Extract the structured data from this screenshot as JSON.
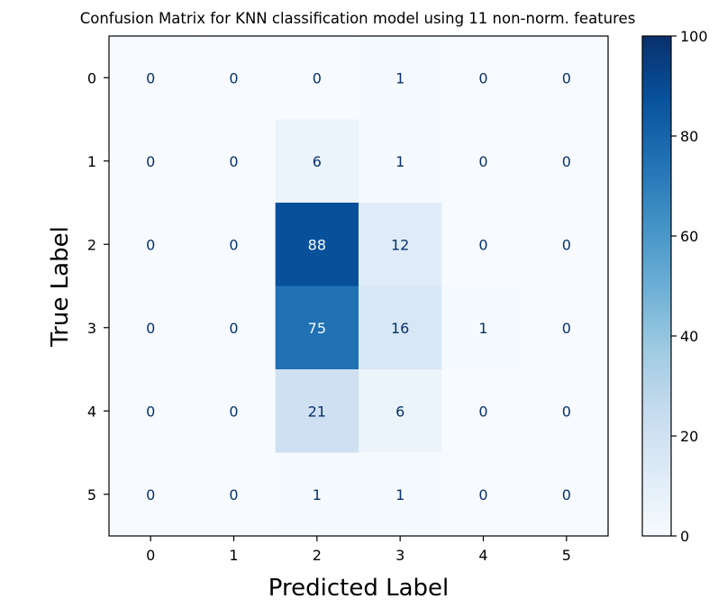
{
  "chart_data": {
    "type": "heatmap",
    "title": "Confusion Matrix for KNN classification model using 11 non-norm. features",
    "xlabel": "Predicted Label",
    "ylabel": "True Label",
    "x_categories": [
      "0",
      "1",
      "2",
      "3",
      "4",
      "5"
    ],
    "y_categories": [
      "0",
      "1",
      "2",
      "3",
      "4",
      "5"
    ],
    "matrix": [
      [
        0,
        0,
        0,
        1,
        0,
        0
      ],
      [
        0,
        0,
        6,
        1,
        0,
        0
      ],
      [
        0,
        0,
        88,
        12,
        0,
        0
      ],
      [
        0,
        0,
        75,
        16,
        1,
        0
      ],
      [
        0,
        0,
        21,
        6,
        0,
        0
      ],
      [
        0,
        0,
        1,
        1,
        0,
        0
      ]
    ],
    "colorbar": {
      "min": 0,
      "max": 100,
      "ticks": [
        0,
        20,
        40,
        60,
        80,
        100
      ],
      "colormap": "Blues"
    },
    "grid": false,
    "legend": "colorbar-right"
  }
}
